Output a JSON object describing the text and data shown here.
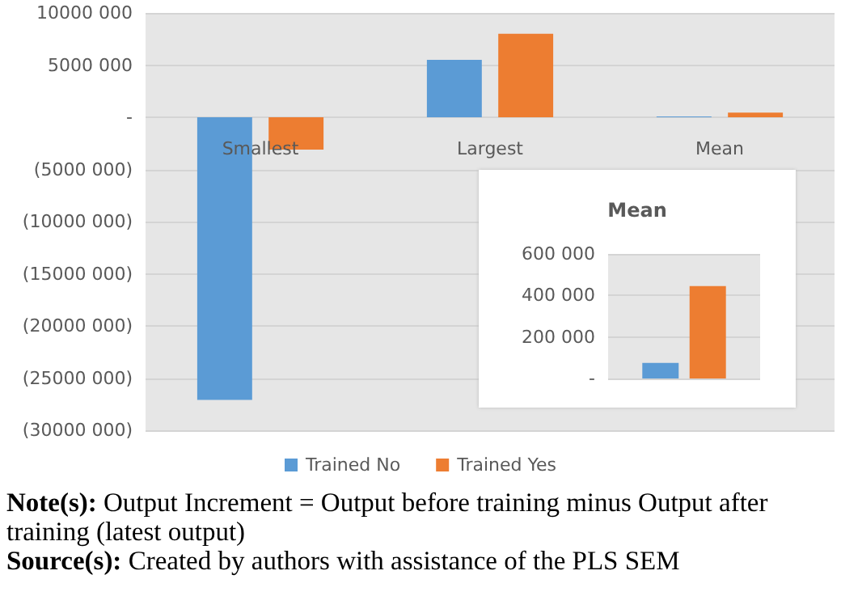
{
  "chart_data": [
    {
      "type": "bar",
      "categories": [
        "Smallest",
        "Largest",
        "Mean"
      ],
      "series": [
        {
          "name": "Trained No",
          "color": "#5b9bd5",
          "values": [
            -27100000,
            5500000,
            75000
          ]
        },
        {
          "name": "Trained Yes",
          "color": "#ed7d31",
          "values": [
            -3100000,
            8000000,
            445000
          ]
        }
      ],
      "ylim": [
        -30000000,
        10000000
      ],
      "yticks": [
        {
          "value": -30000000,
          "label": "(30000 000)"
        },
        {
          "value": -25000000,
          "label": "(25000 000)"
        },
        {
          "value": -20000000,
          "label": "(20000 000)"
        },
        {
          "value": -15000000,
          "label": "(15000 000)"
        },
        {
          "value": -10000000,
          "label": "(10000 000)"
        },
        {
          "value": -5000000,
          "label": "(5000 000)"
        },
        {
          "value": 0,
          "label": "-"
        },
        {
          "value": 5000000,
          "label": "5000 000"
        },
        {
          "value": 10000000,
          "label": "10000 000"
        }
      ],
      "grid": "y",
      "legend": "bottom",
      "annotations": [
        "Note(s): Output Increment = Output before training minus Output after training (latest output)",
        "Source(s): Created by authors with assistance of the PLS SEM"
      ]
    },
    {
      "type": "bar",
      "title": "Mean",
      "categories": [
        null
      ],
      "series": [
        {
          "color": "#5b9bd5",
          "values": [
            75000
          ]
        },
        {
          "color": "#ed7d31",
          "values": [
            445000
          ]
        }
      ],
      "ylim": [
        0,
        600000
      ],
      "yticks": [
        {
          "value": 0,
          "label": "-"
        },
        {
          "value": 200000,
          "label": "200 000"
        },
        {
          "value": 400000,
          "label": "400 000"
        },
        {
          "value": 600000,
          "label": "600 000"
        }
      ],
      "grid": "y",
      "tick_labels": "y"
    }
  ]
}
